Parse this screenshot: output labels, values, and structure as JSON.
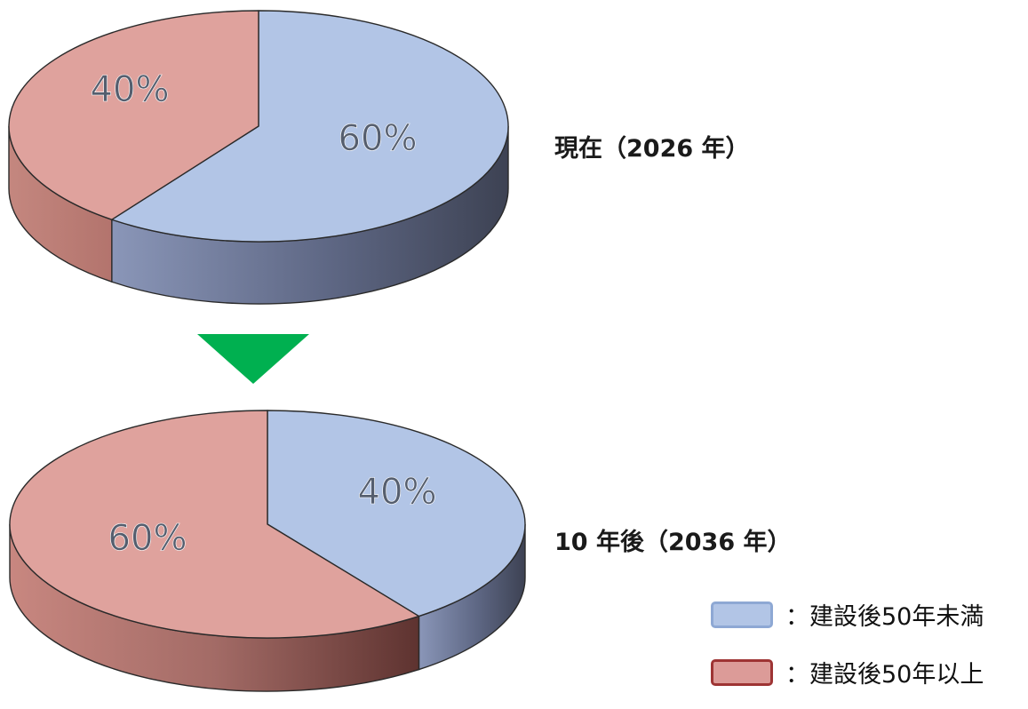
{
  "chart_data": [
    {
      "type": "pie",
      "title": "現在（2026 年）",
      "categories": [
        "建設後50年未満",
        "建設後50年以上"
      ],
      "values": [
        60,
        40
      ],
      "data_labels": [
        "60%",
        "40%"
      ]
    },
    {
      "type": "pie",
      "title": "10 年後（2036 年）",
      "categories": [
        "建設後50年未満",
        "建設後50年以上"
      ],
      "values": [
        40,
        60
      ],
      "data_labels": [
        "40%",
        "60%"
      ]
    }
  ],
  "legend": [
    {
      "marker": "：",
      "label": "建設後50年未満",
      "color": "#b2c5e6",
      "border": "#8ea8d4"
    },
    {
      "marker": "：",
      "label": "建設後50年以上",
      "color": "#dc9b98",
      "border": "#9e3434"
    }
  ],
  "colors": {
    "under50_top": "#b2c5e6",
    "over50_top": "#dfa29d",
    "arrow": "#00b050"
  }
}
